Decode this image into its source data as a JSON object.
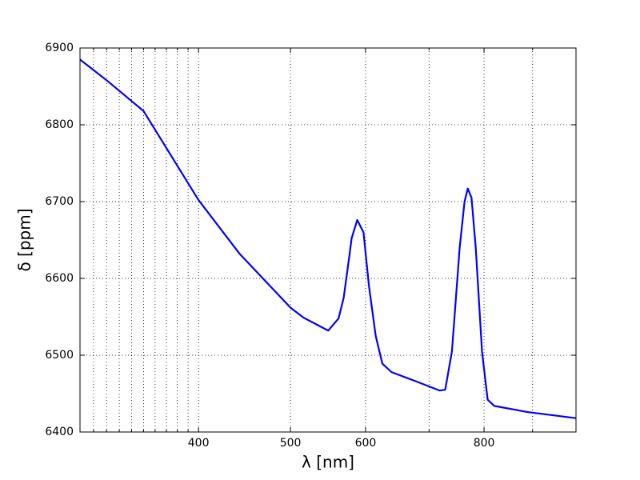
{
  "chart_data": {
    "type": "line",
    "xlabel": "λ [nm]",
    "ylabel": "δ [ppm]",
    "x": [
      300,
      320,
      350,
      400,
      442,
      500,
      516,
      548,
      562,
      569,
      577,
      580,
      588,
      597,
      605,
      615,
      625,
      639,
      678,
      718,
      728,
      740,
      754,
      763,
      769,
      776,
      784,
      796,
      807,
      820,
      889,
      1000
    ],
    "series": [
      {
        "name": "δ",
        "color": "#0000ff",
        "values": [
          6885,
          6858,
          6818,
          6702,
          6632,
          6562,
          6549,
          6532,
          6548,
          6575,
          6630,
          6652,
          6676,
          6660,
          6590,
          6525,
          6489,
          6478,
          6466,
          6454,
          6455,
          6505,
          6640,
          6700,
          6717,
          6705,
          6640,
          6505,
          6442,
          6434,
          6426,
          6418
        ]
      }
    ],
    "xlim": [
      300,
      1000
    ],
    "xscale": "log",
    "xticks": [
      400,
      500,
      600,
      800
    ],
    "xminorticks": [
      310,
      320,
      330,
      340,
      350,
      360,
      370,
      380,
      390,
      700,
      900
    ],
    "ylim": [
      6400,
      6900
    ],
    "yticks": [
      6400,
      6500,
      6600,
      6700,
      6800,
      6900
    ],
    "grid": true
  }
}
